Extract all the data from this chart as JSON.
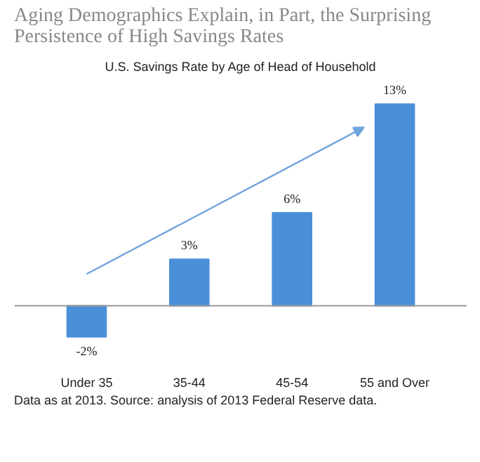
{
  "chart_data": {
    "type": "bar",
    "title": "Aging Demographics Explain, in Part, the Surprising Persistence of High Savings Rates",
    "subtitle": "U.S. Savings Rate by Age of Head of Household",
    "categories": [
      "Under 35",
      "35-44",
      "45-54",
      "55 and Over"
    ],
    "values": [
      -2,
      3,
      6,
      13
    ],
    "value_labels": [
      "-2%",
      "3%",
      "6%",
      "13%"
    ],
    "color": "#4a90d9",
    "annotations": [
      "Data as at 2013. Source: analysis of 2013 Federal Reserve data."
    ]
  }
}
